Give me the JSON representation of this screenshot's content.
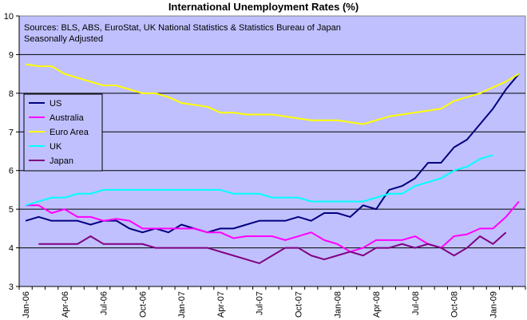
{
  "chart_data": {
    "type": "line",
    "title": "International Unemployment Rates (%)",
    "notes": [
      "Sources: BLS, ABS, EuroStat, UK National Statistics & Statistics Bureau of Japan",
      "Seasonally Adjusted"
    ],
    "ylim": [
      3,
      10
    ],
    "yticks": [
      "3",
      "4",
      "5",
      "6",
      "7",
      "8",
      "9",
      "10"
    ],
    "x_tick_labels": [
      "Jan-06",
      "Apr-06",
      "Jul-06",
      "Oct-06",
      "Jan-07",
      "Apr-07",
      "Jul-07",
      "Oct-07",
      "Jan-08",
      "Apr-08",
      "Jul-08",
      "Oct-08",
      "Jan-09"
    ],
    "x_months": [
      "Jan-06",
      "Feb-06",
      "Mar-06",
      "Apr-06",
      "May-06",
      "Jun-06",
      "Jul-06",
      "Aug-06",
      "Sep-06",
      "Oct-06",
      "Nov-06",
      "Dec-06",
      "Jan-07",
      "Feb-07",
      "Mar-07",
      "Apr-07",
      "May-07",
      "Jun-07",
      "Jul-07",
      "Aug-07",
      "Sep-07",
      "Oct-07",
      "Nov-07",
      "Dec-07",
      "Jan-08",
      "Feb-08",
      "Mar-08",
      "Apr-08",
      "May-08",
      "Jun-08",
      "Jul-08",
      "Aug-08",
      "Sep-08",
      "Oct-08",
      "Nov-08",
      "Dec-08",
      "Jan-09",
      "Feb-09",
      "Mar-09"
    ],
    "grid": true,
    "legend_position": "left",
    "plot_background": "#C0C0FF",
    "series": [
      {
        "name": "US",
        "color": "#000080",
        "values": [
          4.7,
          4.8,
          4.7,
          4.7,
          4.7,
          4.6,
          4.7,
          4.7,
          4.5,
          4.4,
          4.5,
          4.4,
          4.6,
          4.5,
          4.4,
          4.5,
          4.5,
          4.6,
          4.7,
          4.7,
          4.7,
          4.8,
          4.7,
          4.9,
          4.9,
          4.8,
          5.1,
          5.0,
          5.5,
          5.6,
          5.8,
          6.2,
          6.2,
          6.6,
          6.8,
          7.2,
          7.6,
          8.1,
          8.5
        ]
      },
      {
        "name": "Australia",
        "color": "#FF00FF",
        "values": [
          5.1,
          5.1,
          4.9,
          5.0,
          4.8,
          4.8,
          4.7,
          4.75,
          4.7,
          4.5,
          4.5,
          4.5,
          4.5,
          4.5,
          4.4,
          4.4,
          4.25,
          4.3,
          4.3,
          4.3,
          4.2,
          4.3,
          4.4,
          4.2,
          4.1,
          3.9,
          4.0,
          4.2,
          4.2,
          4.2,
          4.3,
          4.1,
          4.0,
          4.3,
          4.35,
          4.5,
          4.5,
          4.8,
          5.2
        ]
      },
      {
        "name": "Euro Area",
        "color": "#FFFF00",
        "values": [
          8.75,
          8.7,
          8.7,
          8.5,
          8.4,
          8.3,
          8.2,
          8.2,
          8.1,
          8.0,
          8.0,
          7.9,
          7.75,
          7.7,
          7.65,
          7.5,
          7.5,
          7.45,
          7.45,
          7.45,
          7.4,
          7.35,
          7.3,
          7.3,
          7.3,
          7.25,
          7.2,
          7.3,
          7.4,
          7.45,
          7.5,
          7.55,
          7.6,
          7.8,
          7.9,
          8.0,
          8.15,
          8.3,
          8.5
        ]
      },
      {
        "name": "UK",
        "color": "#00FFFF",
        "values": [
          5.1,
          5.2,
          5.3,
          5.3,
          5.4,
          5.4,
          5.5,
          5.5,
          5.5,
          5.5,
          5.5,
          5.5,
          5.5,
          5.5,
          5.5,
          5.5,
          5.4,
          5.4,
          5.4,
          5.3,
          5.3,
          5.3,
          5.2,
          5.2,
          5.2,
          5.2,
          5.2,
          5.3,
          5.4,
          5.4,
          5.6,
          5.7,
          5.8,
          6.0,
          6.1,
          6.3,
          6.4,
          null,
          null
        ]
      },
      {
        "name": "Japan",
        "color": "#800080",
        "values": [
          null,
          4.1,
          4.1,
          4.1,
          4.1,
          4.3,
          4.1,
          4.1,
          4.1,
          4.1,
          4.0,
          4.0,
          4.0,
          4.0,
          4.0,
          3.9,
          3.8,
          3.7,
          3.6,
          3.8,
          4.0,
          4.0,
          3.8,
          3.7,
          3.8,
          3.9,
          3.8,
          4.0,
          4.0,
          4.1,
          4.0,
          4.1,
          4.0,
          3.8,
          4.0,
          4.3,
          4.1,
          4.4,
          null
        ]
      }
    ]
  }
}
